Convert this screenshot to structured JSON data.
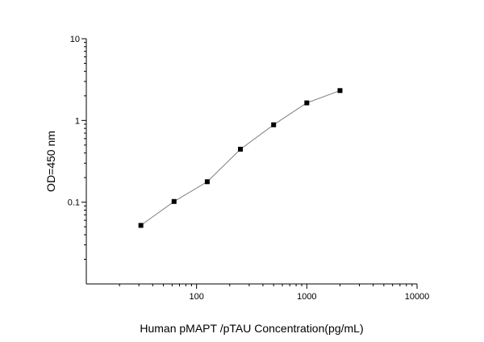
{
  "chart_data": {
    "type": "line",
    "title": "",
    "xlabel": "Human pMAPT /pTAU Concentration(pg/mL)",
    "ylabel": "OD=450 nm",
    "x_scale": "log",
    "y_scale": "log",
    "xlim": [
      10,
      10000
    ],
    "ylim": [
      0.01,
      10
    ],
    "x_ticks": [
      100,
      1000,
      10000
    ],
    "x_tick_labels": [
      "100",
      "1000",
      "10000"
    ],
    "y_ticks": [
      0.1,
      1,
      10
    ],
    "y_tick_labels": [
      "0.1",
      "1",
      "10"
    ],
    "grid": false,
    "legend": "none",
    "series": [
      {
        "x": [
          31.25,
          62.5,
          125,
          250,
          500,
          1000,
          2000
        ],
        "y": [
          0.052,
          0.102,
          0.178,
          0.445,
          0.885,
          1.64,
          2.32
        ]
      }
    ],
    "colors": {
      "line": "#7f7f7f",
      "marker": "#000000",
      "axis": "#000000"
    }
  }
}
